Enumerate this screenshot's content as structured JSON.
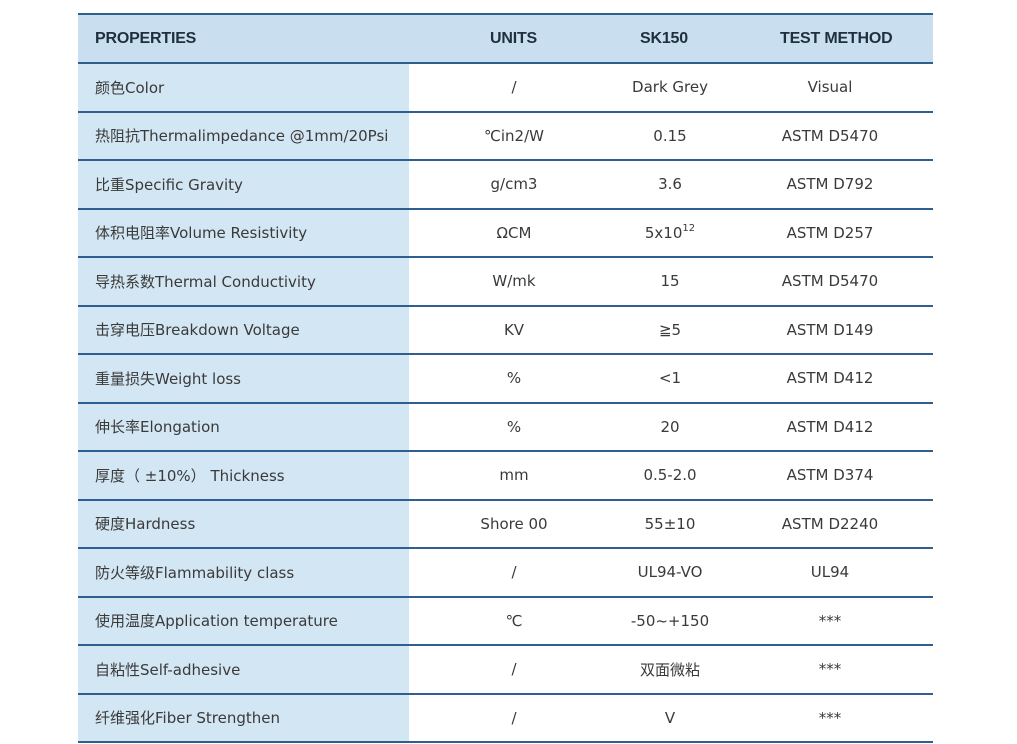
{
  "header": {
    "properties": "PROPERTIES",
    "units": "UNITS",
    "sk150": "SK150",
    "test_method": "TEST METHOD"
  },
  "rows": [
    {
      "property": "颜色Color",
      "units": "/",
      "value": "Dark Grey",
      "test": "Visual"
    },
    {
      "property": "热阻抗Thermalimpedance @1mm/20Psi",
      "units": "℃in2/W",
      "value": "0.15",
      "test": "ASTM D5470"
    },
    {
      "property": "比重Specific Gravity",
      "units": "g/cm3",
      "value": "3.6",
      "test": "ASTM D792"
    },
    {
      "property": "体积电阻率Volume Resistivity",
      "units": "ΩCM",
      "value": "5x10",
      "value_sup": "12",
      "test": "ASTM D257"
    },
    {
      "property": "导热系数Thermal Conductivity",
      "units": "W/mk",
      "value": "15",
      "test": "ASTM D5470"
    },
    {
      "property": "击穿电压Breakdown Voltage",
      "units": "KV",
      "value": "≧5",
      "test": "ASTM D149"
    },
    {
      "property": "重量损失Weight loss",
      "units": "%",
      "value": "<1",
      "test": "ASTM D412"
    },
    {
      "property": "伸长率Elongation",
      "units": "%",
      "value": "20",
      "test": "ASTM D412"
    },
    {
      "property": "厚度（ ±10%） Thickness",
      "units": "mm",
      "value": "0.5-2.0",
      "test": "ASTM D374"
    },
    {
      "property": "硬度Hardness",
      "units": "Shore 00",
      "value": "55±10",
      "test": "ASTM D2240"
    },
    {
      "property": "防火等级Flammability class",
      "units": "/",
      "value": "UL94-VO",
      "test": "UL94"
    },
    {
      "property": "使用温度Application temperature",
      "units": "℃",
      "value": "-50~+150",
      "test": "***"
    },
    {
      "property": "自粘性Self-adhesive",
      "units": "/",
      "value": "双面微粘",
      "test": "***"
    },
    {
      "property": "纤维强化Fiber Strengthen",
      "units": "/",
      "value": "V",
      "test": "***"
    }
  ],
  "colors": {
    "header_bg": "#c9dfef",
    "property_bg": "#d3e6f3",
    "rule": "#2e5f8f"
  }
}
